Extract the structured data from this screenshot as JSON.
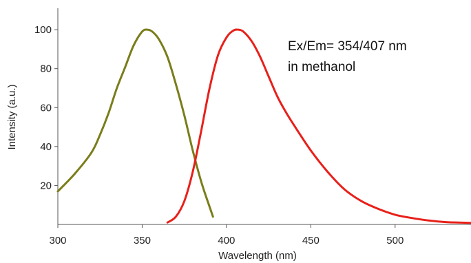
{
  "chart_data": {
    "type": "line",
    "title": "",
    "xlabel": "Wavelength (nm)",
    "ylabel": "Intensity (a.u.)",
    "xlim": [
      300,
      545
    ],
    "ylim": [
      0,
      111
    ],
    "x_ticks": [
      300,
      350,
      400,
      450,
      500
    ],
    "y_ticks": [
      20,
      40,
      60,
      80,
      100
    ],
    "grid": false,
    "annotation": [
      "Ex/Em= 354/407 nm",
      "in methanol"
    ],
    "series": [
      {
        "color": "#7a7d1a",
        "x": [
          300,
          310,
          320,
          325,
          330,
          335,
          340,
          345,
          350,
          353,
          356,
          360,
          365,
          370,
          375,
          380,
          385,
          390,
          392
        ],
        "y": [
          17,
          26,
          37,
          46,
          57,
          70,
          81,
          92,
          99,
          100,
          99,
          95,
          86,
          72,
          56,
          38,
          22,
          9,
          4
        ]
      },
      {
        "color": "#e8201a",
        "x": [
          365,
          370,
          375,
          380,
          385,
          390,
          395,
          400,
          404,
          407,
          410,
          415,
          420,
          425,
          430,
          435,
          440,
          450,
          460,
          470,
          480,
          490,
          500,
          510,
          520,
          530,
          545
        ],
        "y": [
          1,
          4,
          12,
          27,
          48,
          70,
          87,
          96,
          99.5,
          100,
          99,
          94,
          86,
          76,
          66,
          58,
          51,
          38,
          27,
          18,
          12,
          8,
          5,
          3.3,
          2,
          1.2,
          0.8
        ]
      }
    ]
  }
}
